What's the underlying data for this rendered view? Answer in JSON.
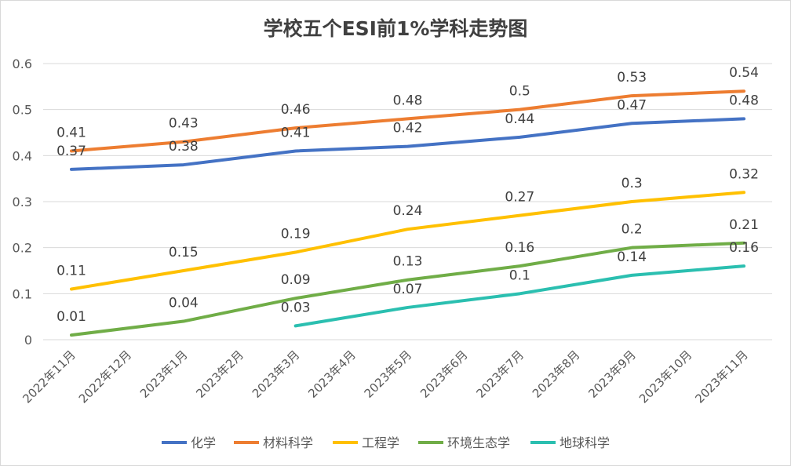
{
  "chart_data": {
    "type": "line",
    "title": "学校五个ESI前1%学科走势图",
    "xlabel": "",
    "ylabel": "",
    "ylim": [
      0,
      0.6
    ],
    "yticks": [
      "0",
      "0.1",
      "0.2",
      "0.3",
      "0.4",
      "0.5",
      "0.6"
    ],
    "grid": true,
    "legend_position": "bottom",
    "categories": [
      "2022年11月",
      "2022年12月",
      "2023年1月",
      "2023年2月",
      "2023年3月",
      "2023年4月",
      "2023年5月",
      "2023年6月",
      "2023年7月",
      "2023年8月",
      "2023年9月",
      "2023年10月",
      "2023年11月"
    ],
    "series": [
      {
        "name": "化学",
        "color": "#4472C4",
        "values": [
          0.37,
          null,
          0.38,
          null,
          0.41,
          null,
          0.42,
          null,
          0.44,
          null,
          0.47,
          null,
          0.48
        ]
      },
      {
        "name": "材料科学",
        "color": "#ED7D31",
        "values": [
          0.41,
          null,
          0.43,
          null,
          0.46,
          null,
          0.48,
          null,
          0.5,
          null,
          0.53,
          null,
          0.54
        ]
      },
      {
        "name": "工程学",
        "color": "#FFC000",
        "values": [
          0.11,
          null,
          0.15,
          null,
          0.19,
          null,
          0.24,
          null,
          0.27,
          null,
          0.3,
          null,
          0.32
        ]
      },
      {
        "name": "环境生态学",
        "color": "#70AD47",
        "values": [
          0.01,
          null,
          0.04,
          null,
          0.09,
          null,
          0.13,
          null,
          0.16,
          null,
          0.2,
          null,
          0.21
        ]
      },
      {
        "name": "地球科学",
        "color": "#2BBFB0",
        "values": [
          null,
          null,
          null,
          null,
          0.03,
          null,
          0.07,
          null,
          0.1,
          null,
          0.14,
          null,
          0.16
        ]
      }
    ]
  }
}
